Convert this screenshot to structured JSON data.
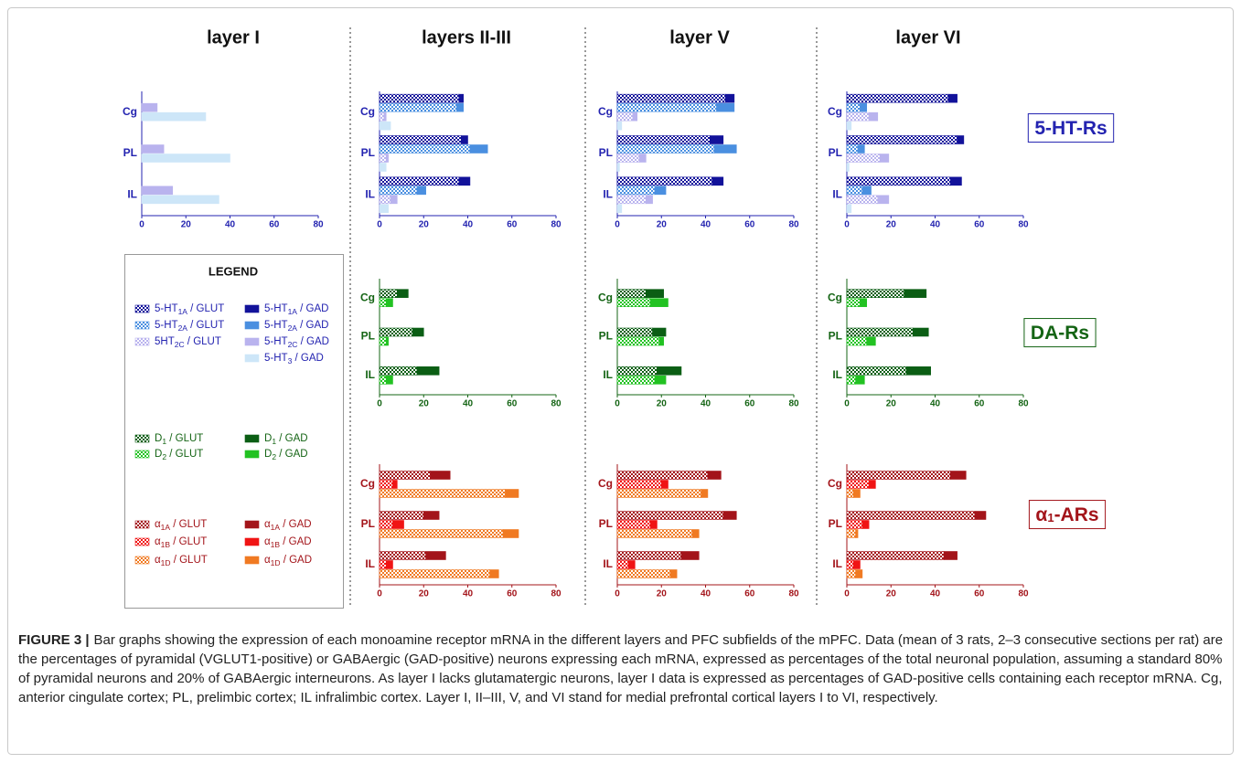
{
  "columns": [
    "layer I",
    "layers II-III",
    "layer V",
    "layer VI"
  ],
  "receptor_labels": [
    {
      "parts": [
        "5-HT-Rs"
      ],
      "color": "#2323b0"
    },
    {
      "parts": [
        "DA-Rs"
      ],
      "color": "#146414"
    },
    {
      "parts": [
        "α",
        "1",
        "-ARs"
      ],
      "color": "#a3141a"
    }
  ],
  "legend": {
    "title": "LEGEND",
    "entries": [
      {
        "parts": [
          "5-HT",
          "1A",
          " / GLUT"
        ],
        "color": "#12129a",
        "pattern": "checker",
        "text_color": "#2323b0"
      },
      {
        "parts": [
          "5-HT",
          "1A",
          " / GAD"
        ],
        "color": "#12129a",
        "pattern": "solid",
        "text_color": "#2323b0"
      },
      {
        "parts": [
          "5-HT",
          "2A",
          " / GLUT"
        ],
        "color": "#4a8fe0",
        "pattern": "checker",
        "text_color": "#2323b0"
      },
      {
        "parts": [
          "5-HT",
          "2A",
          " / GAD"
        ],
        "color": "#4a8fe0",
        "pattern": "solid",
        "text_color": "#2323b0"
      },
      {
        "parts": [
          "5HT",
          "2C",
          " / GLUT"
        ],
        "color": "#b9b3ee",
        "pattern": "checker",
        "text_color": "#2323b0"
      },
      {
        "parts": [
          "5-HT",
          "2C",
          " / GAD"
        ],
        "color": "#b9b3ee",
        "pattern": "solid",
        "text_color": "#2323b0"
      },
      {
        "parts": [
          "5-HT",
          "3",
          " / GAD"
        ],
        "color": "#cde6f8",
        "pattern": "solid",
        "text_color": "#2323b0"
      },
      {
        "parts": [
          "D",
          "1",
          " / GLUT"
        ],
        "color": "#0b5e14",
        "pattern": "checker",
        "text_color": "#146414"
      },
      {
        "parts": [
          "D",
          "1",
          " / GAD"
        ],
        "color": "#0b5e14",
        "pattern": "solid",
        "text_color": "#146414"
      },
      {
        "parts": [
          "D",
          "2",
          " / GLUT"
        ],
        "color": "#22c222",
        "pattern": "checker",
        "text_color": "#146414"
      },
      {
        "parts": [
          "D",
          "2",
          " / GAD"
        ],
        "color": "#22c222",
        "pattern": "solid",
        "text_color": "#146414"
      },
      {
        "parts": [
          "α",
          "1A",
          " / GLUT"
        ],
        "color": "#a3141a",
        "pattern": "checker",
        "text_color": "#a3141a"
      },
      {
        "parts": [
          "α",
          "1A",
          " / GAD"
        ],
        "color": "#a3141a",
        "pattern": "solid",
        "text_color": "#a3141a"
      },
      {
        "parts": [
          "α",
          "1B",
          " / GLUT"
        ],
        "color": "#f01414",
        "pattern": "checker",
        "text_color": "#a3141a"
      },
      {
        "parts": [
          "α",
          "1B",
          " / GAD"
        ],
        "color": "#f01414",
        "pattern": "solid",
        "text_color": "#a3141a"
      },
      {
        "parts": [
          "α",
          "1D",
          " / GLUT"
        ],
        "color": "#f07a22",
        "pattern": "checker",
        "text_color": "#a3141a"
      },
      {
        "parts": [
          "α",
          "1D",
          " / GAD"
        ],
        "color": "#f07a22",
        "pattern": "solid",
        "text_color": "#a3141a"
      }
    ]
  },
  "chart_data": [
    {
      "type": "bar",
      "orientation": "horizontal",
      "stacked": true,
      "categories": [
        "Cg",
        "PL",
        "IL"
      ],
      "xlim": [
        0,
        80
      ],
      "xticks": [
        0,
        20,
        40,
        60,
        80
      ],
      "axis_color": "#2323b0",
      "bars": [
        {
          "series": [
            {
              "color": "#b9b3ee",
              "pattern": "solid",
              "values": [
                7,
                10,
                14
              ]
            }
          ]
        },
        {
          "series": [
            {
              "color": "#cde6f8",
              "pattern": "solid",
              "values": [
                29,
                40,
                35
              ]
            }
          ]
        }
      ]
    },
    {
      "type": "bar",
      "orientation": "horizontal",
      "stacked": true,
      "categories": [
        "Cg",
        "PL",
        "IL"
      ],
      "xlim": [
        0,
        80
      ],
      "xticks": [
        0,
        20,
        40,
        60,
        80
      ],
      "axis_color": "#2323b0",
      "bars": [
        {
          "series": [
            {
              "color": "#12129a",
              "pattern": "checker",
              "values": [
                36,
                37,
                36
              ]
            },
            {
              "color": "#12129a",
              "pattern": "solid",
              "values": [
                2,
                3,
                5
              ]
            }
          ]
        },
        {
          "series": [
            {
              "color": "#4a8fe0",
              "pattern": "checker",
              "values": [
                35,
                41,
                17
              ]
            },
            {
              "color": "#4a8fe0",
              "pattern": "solid",
              "values": [
                3,
                8,
                4
              ]
            }
          ]
        },
        {
          "series": [
            {
              "color": "#b9b3ee",
              "pattern": "checker",
              "values": [
                2,
                3,
                5
              ]
            },
            {
              "color": "#b9b3ee",
              "pattern": "solid",
              "values": [
                1,
                1,
                3
              ]
            }
          ]
        },
        {
          "series": [
            {
              "color": "#cde6f8",
              "pattern": "solid",
              "values": [
                5,
                3,
                4
              ]
            }
          ]
        }
      ]
    },
    {
      "type": "bar",
      "orientation": "horizontal",
      "stacked": true,
      "categories": [
        "Cg",
        "PL",
        "IL"
      ],
      "xlim": [
        0,
        80
      ],
      "xticks": [
        0,
        20,
        40,
        60,
        80
      ],
      "axis_color": "#2323b0",
      "bars": [
        {
          "series": [
            {
              "color": "#12129a",
              "pattern": "checker",
              "values": [
                49,
                42,
                43
              ]
            },
            {
              "color": "#12129a",
              "pattern": "solid",
              "values": [
                4,
                6,
                5
              ]
            }
          ]
        },
        {
          "series": [
            {
              "color": "#4a8fe0",
              "pattern": "checker",
              "values": [
                45,
                44,
                17
              ]
            },
            {
              "color": "#4a8fe0",
              "pattern": "solid",
              "values": [
                8,
                10,
                5
              ]
            }
          ]
        },
        {
          "series": [
            {
              "color": "#b9b3ee",
              "pattern": "checker",
              "values": [
                7,
                10,
                13
              ]
            },
            {
              "color": "#b9b3ee",
              "pattern": "solid",
              "values": [
                2,
                3,
                3
              ]
            }
          ]
        },
        {
          "series": [
            {
              "color": "#cde6f8",
              "pattern": "solid",
              "values": [
                2,
                1,
                2
              ]
            }
          ]
        }
      ]
    },
    {
      "type": "bar",
      "orientation": "horizontal",
      "stacked": true,
      "categories": [
        "Cg",
        "PL",
        "IL"
      ],
      "xlim": [
        0,
        80
      ],
      "xticks": [
        0,
        20,
        40,
        60,
        80
      ],
      "axis_color": "#2323b0",
      "bars": [
        {
          "series": [
            {
              "color": "#12129a",
              "pattern": "checker",
              "values": [
                46,
                50,
                47
              ]
            },
            {
              "color": "#12129a",
              "pattern": "solid",
              "values": [
                4,
                3,
                5
              ]
            }
          ]
        },
        {
          "series": [
            {
              "color": "#4a8fe0",
              "pattern": "checker",
              "values": [
                6,
                5,
                7
              ]
            },
            {
              "color": "#4a8fe0",
              "pattern": "solid",
              "values": [
                3,
                3,
                4
              ]
            }
          ]
        },
        {
          "series": [
            {
              "color": "#b9b3ee",
              "pattern": "checker",
              "values": [
                10,
                15,
                14
              ]
            },
            {
              "color": "#b9b3ee",
              "pattern": "solid",
              "values": [
                4,
                4,
                5
              ]
            }
          ]
        },
        {
          "series": [
            {
              "color": "#cde6f8",
              "pattern": "solid",
              "values": [
                2,
                1,
                2
              ]
            }
          ]
        }
      ]
    },
    {
      "type": "bar",
      "orientation": "horizontal",
      "stacked": true,
      "categories": [
        "Cg",
        "PL",
        "IL"
      ],
      "xlim": [
        0,
        80
      ],
      "xticks": [
        0,
        20,
        40,
        60,
        80
      ],
      "axis_color": "#146414",
      "bars": [
        {
          "series": [
            {
              "color": "#0b5e14",
              "pattern": "checker",
              "values": [
                8,
                15,
                17
              ]
            },
            {
              "color": "#0b5e14",
              "pattern": "solid",
              "values": [
                5,
                5,
                10
              ]
            }
          ]
        },
        {
          "series": [
            {
              "color": "#22c222",
              "pattern": "checker",
              "values": [
                3,
                3,
                3
              ]
            },
            {
              "color": "#22c222",
              "pattern": "solid",
              "values": [
                3,
                1,
                3
              ]
            }
          ]
        }
      ]
    },
    {
      "type": "bar",
      "orientation": "horizontal",
      "stacked": true,
      "categories": [
        "Cg",
        "PL",
        "IL"
      ],
      "xlim": [
        0,
        80
      ],
      "xticks": [
        0,
        20,
        40,
        60,
        80
      ],
      "axis_color": "#146414",
      "bars": [
        {
          "series": [
            {
              "color": "#0b5e14",
              "pattern": "checker",
              "values": [
                13,
                16,
                18
              ]
            },
            {
              "color": "#0b5e14",
              "pattern": "solid",
              "values": [
                8,
                6,
                11
              ]
            }
          ]
        },
        {
          "series": [
            {
              "color": "#22c222",
              "pattern": "checker",
              "values": [
                15,
                19,
                17
              ]
            },
            {
              "color": "#22c222",
              "pattern": "solid",
              "values": [
                8,
                2,
                5
              ]
            }
          ]
        }
      ]
    },
    {
      "type": "bar",
      "orientation": "horizontal",
      "stacked": true,
      "categories": [
        "Cg",
        "PL",
        "IL"
      ],
      "xlim": [
        0,
        80
      ],
      "xticks": [
        0,
        20,
        40,
        60,
        80
      ],
      "axis_color": "#146414",
      "bars": [
        {
          "series": [
            {
              "color": "#0b5e14",
              "pattern": "checker",
              "values": [
                26,
                30,
                27
              ]
            },
            {
              "color": "#0b5e14",
              "pattern": "solid",
              "values": [
                10,
                7,
                11
              ]
            }
          ]
        },
        {
          "series": [
            {
              "color": "#22c222",
              "pattern": "checker",
              "values": [
                6,
                9,
                4
              ]
            },
            {
              "color": "#22c222",
              "pattern": "solid",
              "values": [
                3,
                4,
                4
              ]
            }
          ]
        }
      ]
    },
    {
      "type": "bar",
      "orientation": "horizontal",
      "stacked": true,
      "categories": [
        "Cg",
        "PL",
        "IL"
      ],
      "xlim": [
        0,
        80
      ],
      "xticks": [
        0,
        20,
        40,
        60,
        80
      ],
      "axis_color": "#a3141a",
      "bars": [
        {
          "series": [
            {
              "color": "#a3141a",
              "pattern": "checker",
              "values": [
                23,
                20,
                21
              ]
            },
            {
              "color": "#a3141a",
              "pattern": "solid",
              "values": [
                9,
                7,
                9
              ]
            }
          ]
        },
        {
          "series": [
            {
              "color": "#f01414",
              "pattern": "checker",
              "values": [
                6,
                6,
                3
              ]
            },
            {
              "color": "#f01414",
              "pattern": "solid",
              "values": [
                2,
                5,
                3
              ]
            }
          ]
        },
        {
          "series": [
            {
              "color": "#f07a22",
              "pattern": "checker",
              "values": [
                57,
                56,
                50
              ]
            },
            {
              "color": "#f07a22",
              "pattern": "solid",
              "values": [
                6,
                7,
                4
              ]
            }
          ]
        }
      ]
    },
    {
      "type": "bar",
      "orientation": "horizontal",
      "stacked": true,
      "categories": [
        "Cg",
        "PL",
        "IL"
      ],
      "xlim": [
        0,
        80
      ],
      "xticks": [
        0,
        20,
        40,
        60,
        80
      ],
      "axis_color": "#a3141a",
      "bars": [
        {
          "series": [
            {
              "color": "#a3141a",
              "pattern": "checker",
              "values": [
                41,
                48,
                29
              ]
            },
            {
              "color": "#a3141a",
              "pattern": "solid",
              "values": [
                6,
                6,
                8
              ]
            }
          ]
        },
        {
          "series": [
            {
              "color": "#f01414",
              "pattern": "checker",
              "values": [
                20,
                15,
                5
              ]
            },
            {
              "color": "#f01414",
              "pattern": "solid",
              "values": [
                3,
                3,
                3
              ]
            }
          ]
        },
        {
          "series": [
            {
              "color": "#f07a22",
              "pattern": "checker",
              "values": [
                38,
                34,
                24
              ]
            },
            {
              "color": "#f07a22",
              "pattern": "solid",
              "values": [
                3,
                3,
                3
              ]
            }
          ]
        }
      ]
    },
    {
      "type": "bar",
      "orientation": "horizontal",
      "stacked": true,
      "categories": [
        "Cg",
        "PL",
        "IL"
      ],
      "xlim": [
        0,
        80
      ],
      "xticks": [
        0,
        20,
        40,
        60,
        80
      ],
      "axis_color": "#a3141a",
      "bars": [
        {
          "series": [
            {
              "color": "#a3141a",
              "pattern": "checker",
              "values": [
                47,
                58,
                44
              ]
            },
            {
              "color": "#a3141a",
              "pattern": "solid",
              "values": [
                7,
                5,
                6
              ]
            }
          ]
        },
        {
          "series": [
            {
              "color": "#f01414",
              "pattern": "checker",
              "values": [
                10,
                7,
                3
              ]
            },
            {
              "color": "#f01414",
              "pattern": "solid",
              "values": [
                3,
                3,
                3
              ]
            }
          ]
        },
        {
          "series": [
            {
              "color": "#f07a22",
              "pattern": "checker",
              "values": [
                3,
                4,
                4
              ]
            },
            {
              "color": "#f07a22",
              "pattern": "solid",
              "values": [
                3,
                1,
                3
              ]
            }
          ]
        }
      ]
    }
  ],
  "caption": {
    "label": "FIGURE 3 |",
    "text": "Bar graphs showing the expression of each monoamine receptor mRNA in the different layers and PFC subfields of the mPFC. Data (mean of 3 rats, 2–3 consecutive sections per rat) are the percentages of pyramidal (VGLUT1-positive) or GABAergic (GAD-positive) neurons expressing each mRNA, expressed as percentages of the total neuronal population, assuming a standard 80% of pyramidal neurons and 20% of GABAergic interneurons. As layer I lacks glutamatergic neurons, layer I data is expressed as percentages of GAD-positive cells containing each receptor mRNA. Cg, anterior cingulate cortex; PL, prelimbic cortex; IL infralimbic cortex. Layer I, II–III, V, and VI stand for medial prefrontal cortical layers I to VI, respectively."
  }
}
